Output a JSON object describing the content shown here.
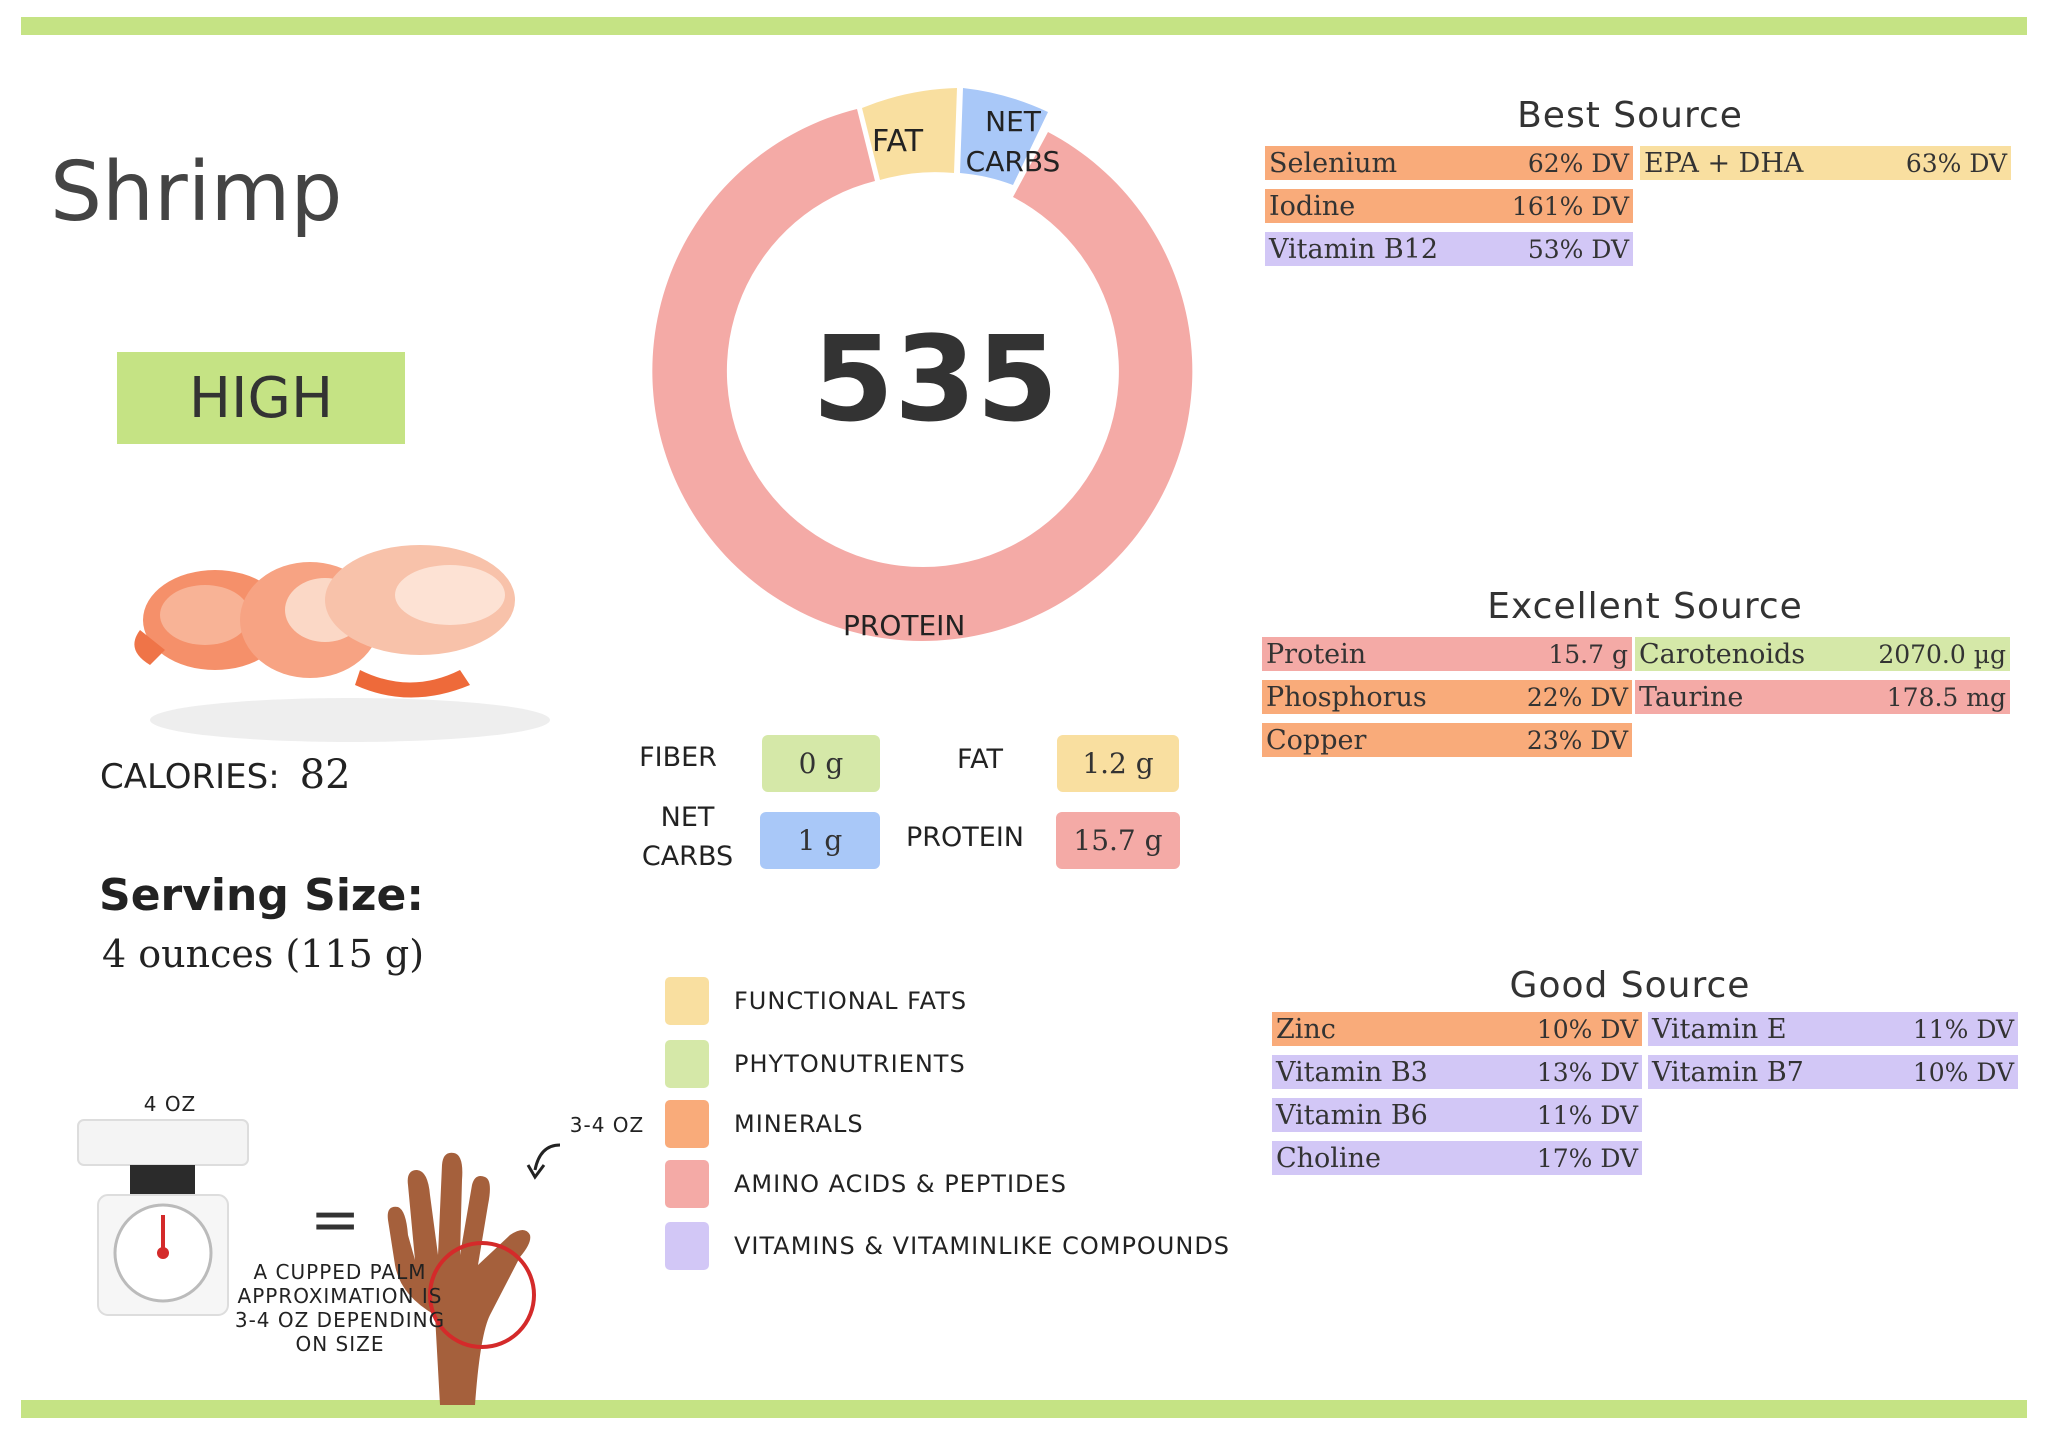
{
  "food": {
    "name": "Shrimp",
    "rating": "HIGH",
    "calories_label": "CALORIES:",
    "calories_value": "82",
    "serving_label": "Serving Size:",
    "serving_value": "4 ounces (115 g)"
  },
  "donut": {
    "center_value": "535",
    "fat_label": "FAT",
    "net_label_1": "NET",
    "net_label_2": "CARBS",
    "protein_label": "PROTEIN"
  },
  "macros": {
    "fiber_label": "FIBER",
    "fiber_value": "0 g",
    "fat_label": "FAT",
    "fat_value": "1.2 g",
    "net_label_1": "NET",
    "net_label_2": "CARBS",
    "net_value": "1 g",
    "protein_label": "PROTEIN",
    "protein_value": "15.7 g"
  },
  "legend": [
    {
      "label": "FUNCTIONAL  FATS",
      "color": "#f9dfa0"
    },
    {
      "label": "PHYTONUTRIENTS",
      "color": "#d5e8a8"
    },
    {
      "label": "MINERALS",
      "color": "#f9ab7a"
    },
    {
      "label": "AMINO ACIDS & PEPTIDES",
      "color": "#f4aaa6"
    },
    {
      "label": "VITAMINS & VITAMINLIKE COMPOUNDS",
      "color": "#d2c7f6"
    }
  ],
  "best_source": {
    "title": "Best Source",
    "left": [
      {
        "name": "Selenium",
        "amount": "62% DV",
        "color": "#f9ab7a"
      },
      {
        "name": "Iodine",
        "amount": "161% DV",
        "color": "#f9ab7a"
      },
      {
        "name": "Vitamin B12",
        "amount": "53% DV",
        "color": "#d2c7f6"
      }
    ],
    "right": [
      {
        "name": "EPA + DHA",
        "amount": "63% DV",
        "color": "#f9dfa0"
      }
    ]
  },
  "excellent_source": {
    "title": "Excellent Source",
    "left": [
      {
        "name": "Protein",
        "amount": "15.7 g",
        "color": "#f4aaa6"
      },
      {
        "name": "Phosphorus",
        "amount": "22% DV",
        "color": "#f9ab7a"
      },
      {
        "name": "Copper",
        "amount": "23% DV",
        "color": "#f9ab7a"
      }
    ],
    "right": [
      {
        "name": "Carotenoids",
        "amount": "2070.0 µg",
        "color": "#d5e8a8"
      },
      {
        "name": "Taurine",
        "amount": "178.5 mg",
        "color": "#f4aaa6"
      }
    ]
  },
  "good_source": {
    "title": "Good Source",
    "left": [
      {
        "name": "Zinc",
        "amount": "10% DV",
        "color": "#f9ab7a"
      },
      {
        "name": "Vitamin B3",
        "amount": "13% DV",
        "color": "#d2c7f6"
      },
      {
        "name": "Vitamin B6",
        "amount": "11% DV",
        "color": "#d2c7f6"
      },
      {
        "name": "Choline",
        "amount": "17% DV",
        "color": "#d2c7f6"
      }
    ],
    "right": [
      {
        "name": "Vitamin E",
        "amount": "11% DV",
        "color": "#d2c7f6"
      },
      {
        "name": "Vitamin B7",
        "amount": "10% DV",
        "color": "#d2c7f6"
      }
    ]
  },
  "portion": {
    "scale_label": "4 OZ",
    "hand_label": "3-4 OZ",
    "equals": "=",
    "note_1": "A CUPPED PALM",
    "note_2": "APPROXIMATION IS",
    "note_3": "3-4 OZ DEPENDING",
    "note_4": "ON SIZE"
  }
}
